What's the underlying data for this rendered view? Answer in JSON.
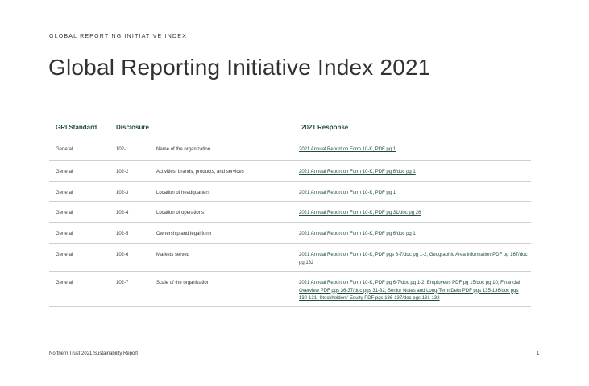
{
  "header": {
    "eyebrow": "GLOBAL REPORTING INITIATIVE INDEX",
    "title": "Global Reporting Initiative Index 2021"
  },
  "table": {
    "columns": {
      "standard": "GRI Standard",
      "disclosure": "Disclosure",
      "response": "2021 Response"
    },
    "rows": [
      {
        "standard": "General",
        "disclosure": "102-1",
        "description": "Name of the organization",
        "response": "2021 Annual Report on Form 10-K, PDF pg 1"
      },
      {
        "standard": "General",
        "disclosure": "102-2",
        "description": "Activities, brands, products, and services",
        "response": "2021 Annual Report on Form 10-K, PDF pg 6/doc pg 1"
      },
      {
        "standard": "General",
        "disclosure": "102-3",
        "description": "Location of headquarters",
        "response": "2021 Annual Report on Form 10-K, PDF pg 1"
      },
      {
        "standard": "General",
        "disclosure": "102-4",
        "description": "Location of operations",
        "response": "2021 Annual Report on Form 10-K, PDF pg 31/doc pg 26"
      },
      {
        "standard": "General",
        "disclosure": "102-5",
        "description": "Ownership and legal form",
        "response": "2021 Annual Report on Form 10-K, PDF pg 6/doc pg 1"
      },
      {
        "standard": "General",
        "disclosure": "102-6",
        "description": "Markets served",
        "response": "2021 Annual Report on Form 10-K, PDF pgs 6-7/doc pg 1-2; Geographic Area Information PDF pg 167/doc pg 162"
      },
      {
        "standard": "General",
        "disclosure": "102-7",
        "description": "Scale of the organization",
        "response": "2021 Annual Report on Form 10-K, PDF pg 6-7/doc pg 1-2; Employees PDF pg 15/doc pg 10; Financial Overview PDF pgs 36-37/doc pgs 31-32; Senior Notes and Long-Term Debt PDF pgs 135-136/doc pgs 130-131; Stockholders' Equity PDF pgs 136-137/doc pgs 131-132"
      }
    ]
  },
  "footer": {
    "text": "Northern Trust 2021 Sustainability Report",
    "page": "1"
  }
}
